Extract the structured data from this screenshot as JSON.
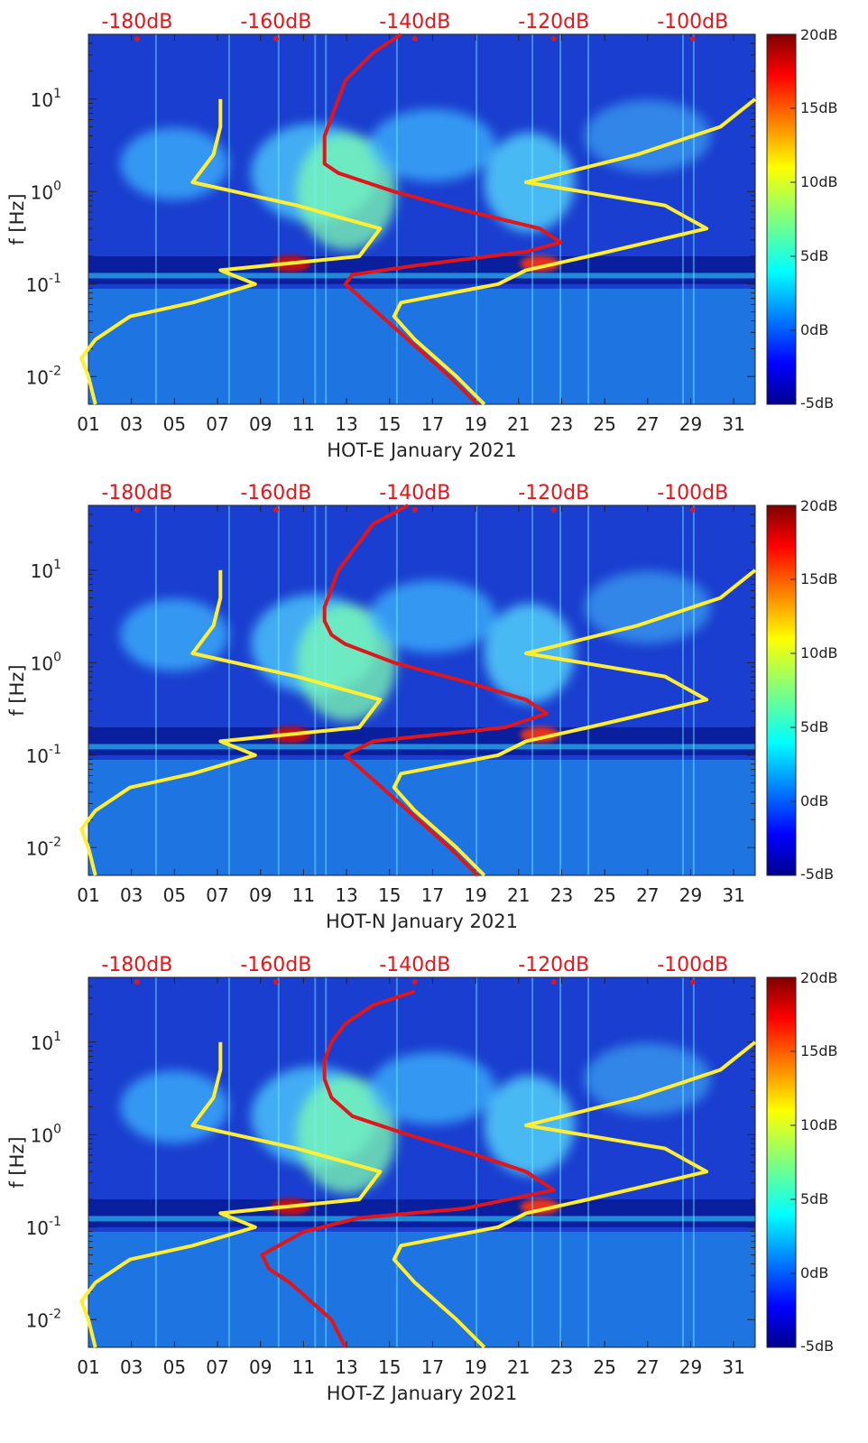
{
  "chart_data": [
    {
      "type": "heatmap",
      "title": "HOT-E January 2021",
      "xlabel": "HOT-E January 2021",
      "ylabel": "f [Hz]",
      "x_ticks": [
        "01",
        "03",
        "05",
        "07",
        "09",
        "11",
        "13",
        "15",
        "17",
        "19",
        "21",
        "23",
        "25",
        "27",
        "29",
        "31"
      ],
      "xlim_days": [
        1,
        32
      ],
      "y_ticks": [
        {
          "base": "10",
          "exp": "1"
        },
        {
          "base": "10",
          "exp": "0"
        },
        {
          "base": "10",
          "exp": "-1"
        },
        {
          "base": "10",
          "exp": "-2"
        }
      ],
      "ylim_log10_hz": [
        -2.3,
        1.7
      ],
      "top_axis_ticks": [
        "-180dB",
        "-160dB",
        "-140dB",
        "-120dB",
        "-100dB"
      ],
      "top_axis_range_db": [
        -187,
        -91
      ],
      "colorbar": {
        "ticks": [
          "20dB",
          "15dB",
          "10dB",
          "5dB",
          "0dB",
          "-5dB"
        ],
        "range_db": [
          -5,
          20
        ],
        "colormap": "jet"
      },
      "series": [
        {
          "name": "Low noise model (yellow, left)",
          "color": "#ffee33",
          "log10_f": [
            1.0,
            0.7,
            0.4,
            0.1,
            -0.15,
            -0.4,
            -0.7,
            -0.85,
            -1.0,
            -1.2,
            -1.35,
            -1.6,
            -1.8,
            -2.0,
            -2.3
          ],
          "db": [
            -168,
            -168,
            -169,
            -172,
            -157,
            -145,
            -148,
            -168,
            -163,
            -172,
            -181,
            -186,
            -188,
            -187,
            -186
          ]
        },
        {
          "name": "High noise model (yellow, right)",
          "color": "#ffee33",
          "log10_f": [
            1.0,
            0.7,
            0.4,
            0.1,
            -0.15,
            -0.4,
            -0.7,
            -0.85,
            -1.0,
            -1.2,
            -1.35,
            -1.6,
            -1.8,
            -2.0,
            -2.3
          ],
          "db": [
            -91,
            -96,
            -108,
            -124,
            -104,
            -98,
            -115,
            -124,
            -128,
            -142,
            -143,
            -140,
            -137,
            -134,
            -130
          ]
        },
        {
          "name": "Channel noise model (red)",
          "color": "#e0161b",
          "log10_f": [
            1.7,
            1.5,
            1.2,
            1.0,
            0.8,
            0.6,
            0.45,
            0.3,
            0.2,
            0.0,
            -0.2,
            -0.4,
            -0.55,
            -0.65,
            -0.8,
            -0.9,
            -1.0,
            -1.2,
            -1.4,
            -1.6,
            -1.8,
            -2.0,
            -2.3
          ],
          "db": [
            -142,
            -146,
            -150,
            -151,
            -152,
            -153,
            -153,
            -153,
            -151,
            -143,
            -133,
            -122,
            -119,
            -124,
            -140,
            -149,
            -150,
            -147,
            -144,
            -141,
            -138,
            -135,
            -131
          ]
        }
      ]
    },
    {
      "type": "heatmap",
      "title": "HOT-N January 2021",
      "xlabel": "HOT-N January 2021",
      "ylabel": "f [Hz]",
      "x_ticks": [
        "01",
        "03",
        "05",
        "07",
        "09",
        "11",
        "13",
        "15",
        "17",
        "19",
        "21",
        "23",
        "25",
        "27",
        "29",
        "31"
      ],
      "xlim_days": [
        1,
        32
      ],
      "y_ticks": [
        {
          "base": "10",
          "exp": "1"
        },
        {
          "base": "10",
          "exp": "0"
        },
        {
          "base": "10",
          "exp": "-1"
        },
        {
          "base": "10",
          "exp": "-2"
        }
      ],
      "ylim_log10_hz": [
        -2.3,
        1.7
      ],
      "top_axis_ticks": [
        "-180dB",
        "-160dB",
        "-140dB",
        "-120dB",
        "-100dB"
      ],
      "top_axis_range_db": [
        -187,
        -91
      ],
      "colorbar": {
        "ticks": [
          "20dB",
          "15dB",
          "10dB",
          "5dB",
          "0dB",
          "-5dB"
        ],
        "range_db": [
          -5,
          20
        ],
        "colormap": "jet"
      },
      "series": [
        {
          "name": "Low noise model (yellow, left)",
          "color": "#ffee33",
          "log10_f": [
            1.0,
            0.7,
            0.4,
            0.1,
            -0.15,
            -0.4,
            -0.7,
            -0.85,
            -1.0,
            -1.2,
            -1.35,
            -1.6,
            -1.8,
            -2.0,
            -2.3
          ],
          "db": [
            -168,
            -168,
            -169,
            -172,
            -157,
            -145,
            -148,
            -168,
            -163,
            -172,
            -181,
            -186,
            -188,
            -187,
            -186
          ]
        },
        {
          "name": "High noise model (yellow, right)",
          "color": "#ffee33",
          "log10_f": [
            1.0,
            0.7,
            0.4,
            0.1,
            -0.15,
            -0.4,
            -0.7,
            -0.85,
            -1.0,
            -1.2,
            -1.35,
            -1.6,
            -1.8,
            -2.0,
            -2.3
          ],
          "db": [
            -91,
            -96,
            -108,
            -124,
            -104,
            -98,
            -115,
            -124,
            -128,
            -142,
            -143,
            -140,
            -137,
            -134,
            -130
          ]
        },
        {
          "name": "Channel noise model (red)",
          "color": "#e0161b",
          "log10_f": [
            1.7,
            1.5,
            1.2,
            1.0,
            0.8,
            0.6,
            0.45,
            0.3,
            0.2,
            0.0,
            -0.2,
            -0.4,
            -0.55,
            -0.7,
            -0.85,
            -1.0,
            -1.2,
            -1.4,
            -1.6,
            -1.8,
            -2.0,
            -2.3
          ],
          "db": [
            -141,
            -146,
            -149,
            -151,
            -152,
            -153,
            -153,
            -152,
            -150,
            -143,
            -133,
            -124,
            -121,
            -127,
            -146,
            -150,
            -147,
            -144,
            -141,
            -138,
            -135,
            -131
          ]
        }
      ]
    },
    {
      "type": "heatmap",
      "title": "HOT-Z January 2021",
      "xlabel": "HOT-Z January 2021",
      "ylabel": "f [Hz]",
      "x_ticks": [
        "01",
        "03",
        "05",
        "07",
        "09",
        "11",
        "13",
        "15",
        "17",
        "19",
        "21",
        "23",
        "25",
        "27",
        "29",
        "31"
      ],
      "xlim_days": [
        1,
        32
      ],
      "y_ticks": [
        {
          "base": "10",
          "exp": "1"
        },
        {
          "base": "10",
          "exp": "0"
        },
        {
          "base": "10",
          "exp": "-1"
        },
        {
          "base": "10",
          "exp": "-2"
        }
      ],
      "ylim_log10_hz": [
        -2.3,
        1.7
      ],
      "top_axis_ticks": [
        "-180dB",
        "-160dB",
        "-140dB",
        "-120dB",
        "-100dB"
      ],
      "top_axis_range_db": [
        -187,
        -91
      ],
      "colorbar": {
        "ticks": [
          "20dB",
          "15dB",
          "10dB",
          "5dB",
          "0dB",
          "-5dB"
        ],
        "range_db": [
          -5,
          20
        ],
        "colormap": "jet"
      },
      "series": [
        {
          "name": "Low noise model (yellow, left)",
          "color": "#ffee33",
          "log10_f": [
            1.0,
            0.7,
            0.4,
            0.1,
            -0.15,
            -0.4,
            -0.7,
            -0.85,
            -1.0,
            -1.2,
            -1.35,
            -1.6,
            -1.8,
            -2.0,
            -2.3
          ],
          "db": [
            -168,
            -168,
            -169,
            -172,
            -157,
            -145,
            -148,
            -168,
            -163,
            -172,
            -181,
            -186,
            -188,
            -187,
            -186
          ]
        },
        {
          "name": "High noise model (yellow, right)",
          "color": "#ffee33",
          "log10_f": [
            1.0,
            0.7,
            0.4,
            0.1,
            -0.15,
            -0.4,
            -0.7,
            -0.85,
            -1.0,
            -1.2,
            -1.35,
            -1.6,
            -1.8,
            -2.0,
            -2.3
          ],
          "db": [
            -91,
            -96,
            -108,
            -124,
            -104,
            -98,
            -115,
            -124,
            -128,
            -142,
            -143,
            -140,
            -137,
            -134,
            -130
          ]
        },
        {
          "name": "Channel noise model (red)",
          "color": "#e0161b",
          "log10_f": [
            1.55,
            1.4,
            1.2,
            1.0,
            0.8,
            0.6,
            0.4,
            0.2,
            0.0,
            -0.2,
            -0.4,
            -0.6,
            -0.8,
            -0.9,
            -1.05,
            -1.3,
            -1.45,
            -1.6,
            -1.8,
            -2.0,
            -2.3
          ],
          "db": [
            -140,
            -146,
            -150,
            -152,
            -153,
            -153,
            -152,
            -149,
            -141,
            -132,
            -124,
            -120,
            -133,
            -148,
            -156,
            -162,
            -161,
            -158,
            -155,
            -152,
            -150
          ]
        }
      ]
    }
  ]
}
